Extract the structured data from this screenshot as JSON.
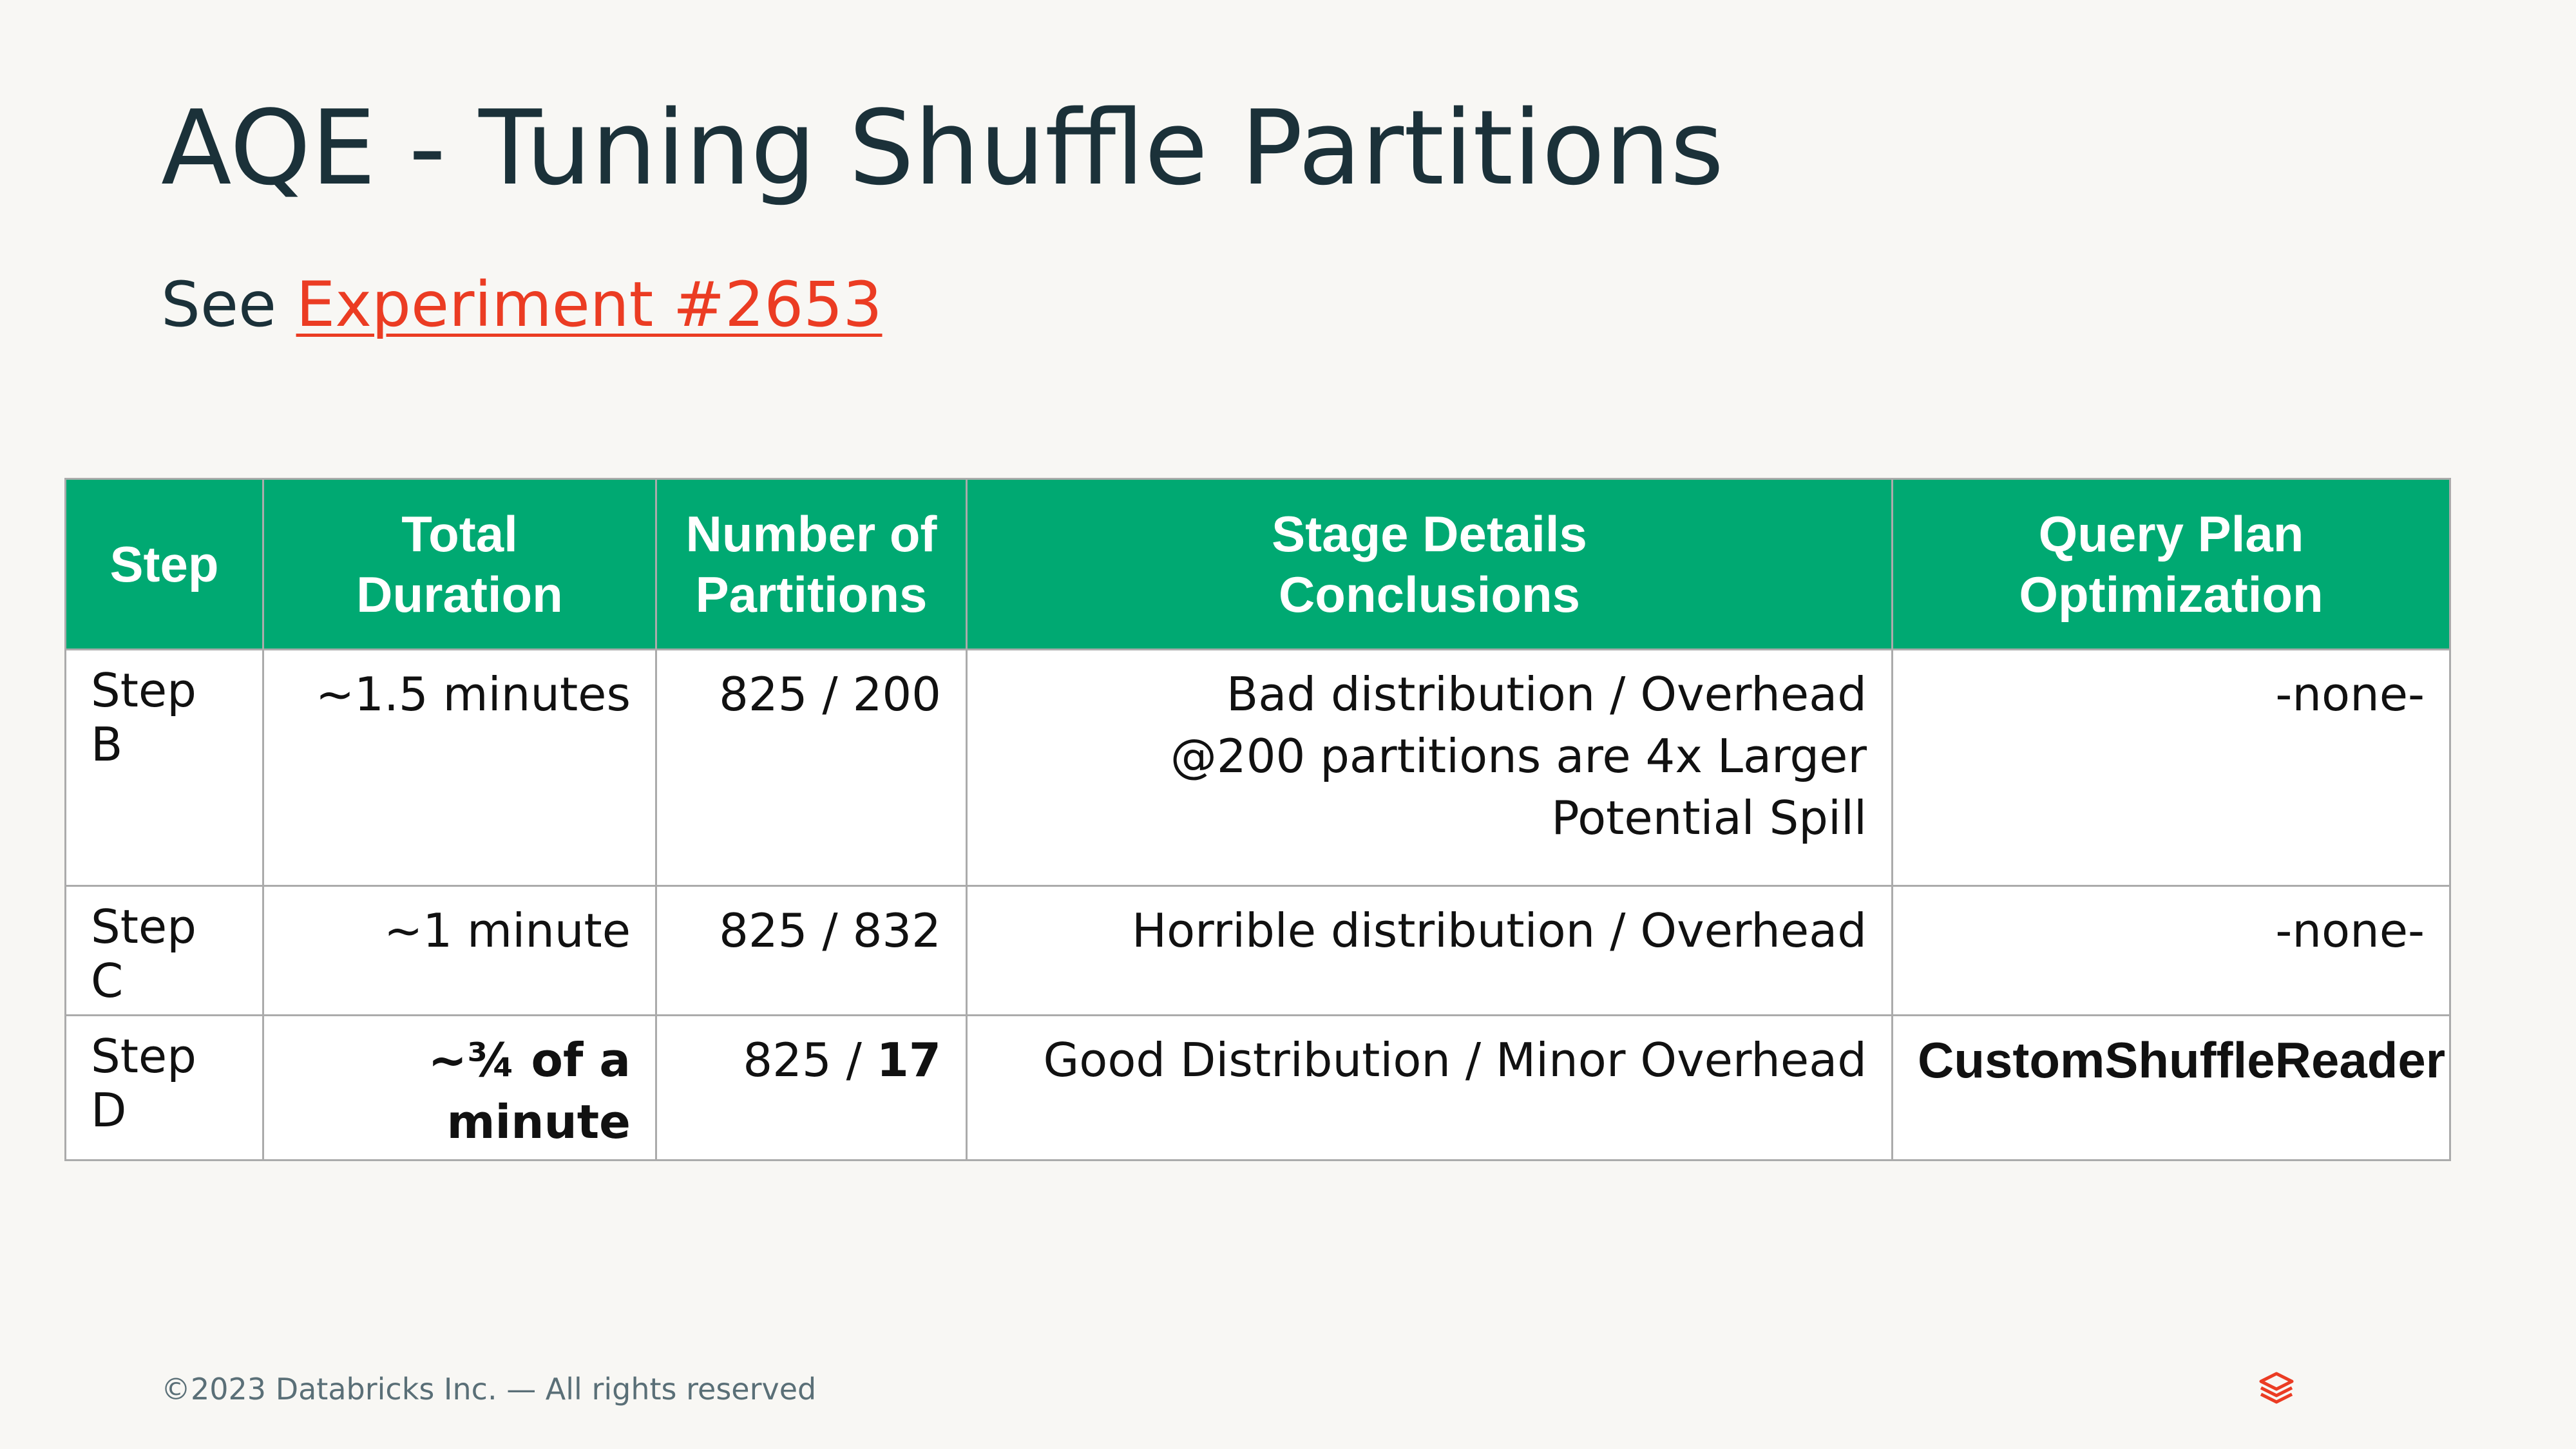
{
  "slide": {
    "title": "AQE - Tuning Shuffle Partitions",
    "subtitle_prefix": "See ",
    "subtitle_link": "Experiment #2653"
  },
  "table": {
    "headers": [
      [
        "Step"
      ],
      [
        "Total",
        "Duration"
      ],
      [
        "Number of",
        "Partitions"
      ],
      [
        "Stage Details",
        "Conclusions"
      ],
      [
        "Query Plan",
        "Optimization"
      ]
    ],
    "rows": [
      {
        "step": [
          "Step",
          "B"
        ],
        "duration": "~1.5 minutes",
        "partitions_a": "825 / ",
        "partitions_b": "200",
        "conclusions": [
          "Bad distribution / Overhead",
          "@200 partitions are 4x Larger",
          "Potential Spill"
        ],
        "optimization": "-none-"
      },
      {
        "step": [
          "Step C"
        ],
        "duration": "~1 minute",
        "partitions_a": "825 / ",
        "partitions_b": "832",
        "conclusions": [
          "Horrible distribution / Overhead"
        ],
        "optimization": "-none-"
      },
      {
        "step": [
          "Step D"
        ],
        "duration": "~¾ of a minute",
        "partitions_a": "825 / ",
        "partitions_b": "17",
        "conclusions": [
          "Good Distribution / Minor Overhead"
        ],
        "optimization": "CustomShuffleReader"
      }
    ]
  },
  "footer": {
    "copyright": "©2023 Databricks Inc. — All rights reserved",
    "logo_icon": "databricks-logo-icon"
  },
  "colors": {
    "background": "#F8F7F4",
    "title": "#1B3139",
    "link": "#EB3C23",
    "header_fill": "#00A972",
    "logo": "#EB3C23"
  }
}
